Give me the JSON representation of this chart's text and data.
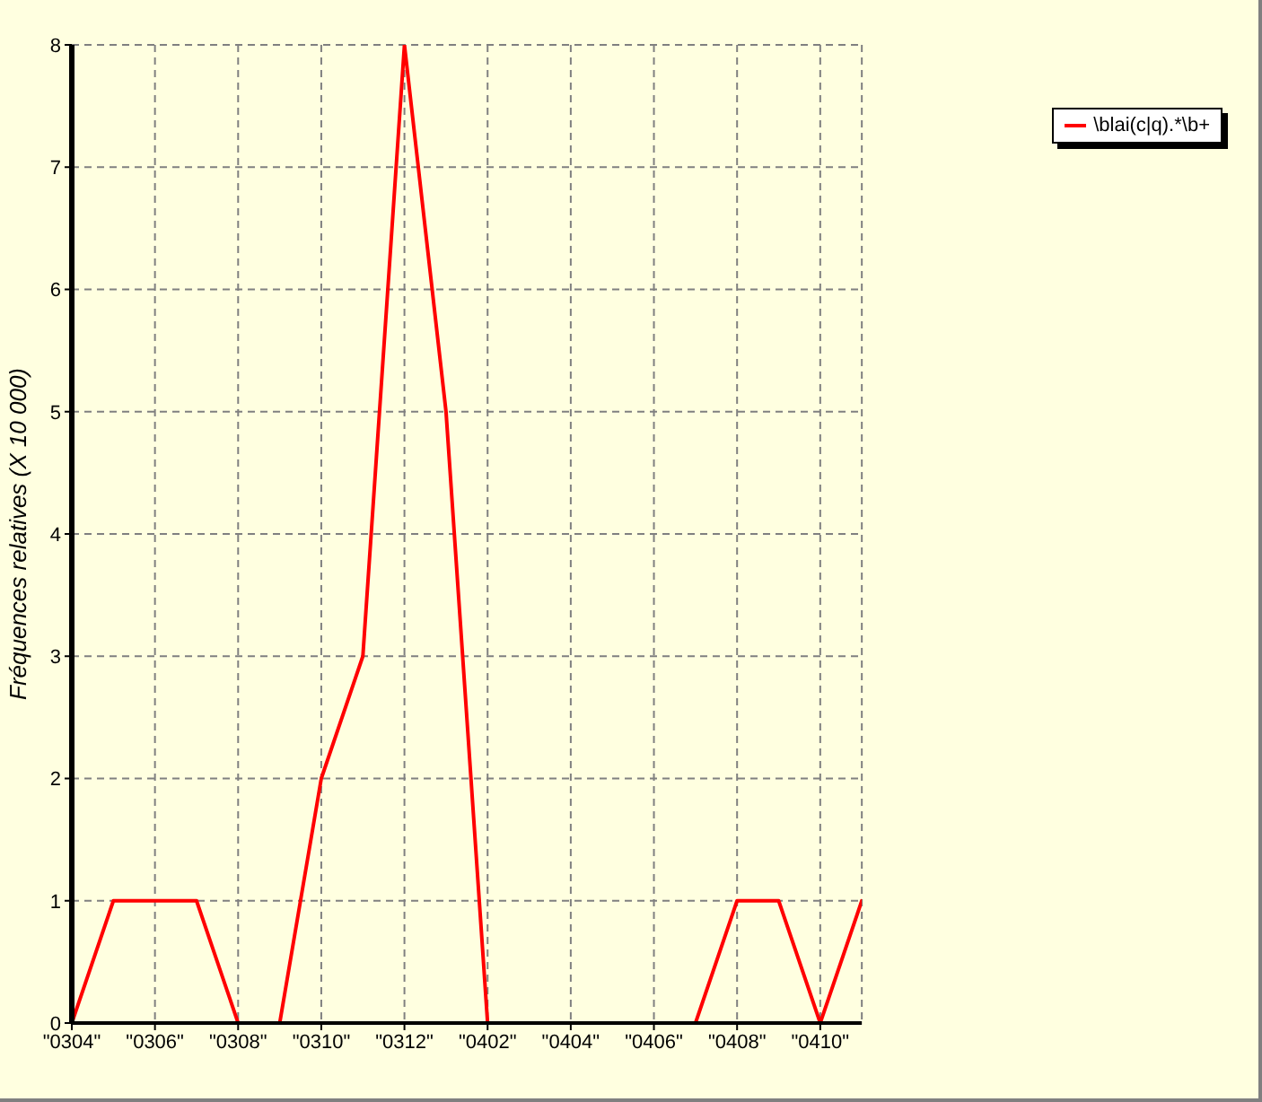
{
  "chart_data": {
    "type": "line",
    "ylabel": "Fréquences relatives (X 10 000)",
    "categories": [
      "\"0304\"",
      null,
      "\"0306\"",
      null,
      "\"0308\"",
      null,
      "\"0310\"",
      null,
      "\"0312\"",
      null,
      "\"0402\"",
      null,
      "\"0404\"",
      null,
      "\"0406\"",
      null,
      "\"0408\"",
      null,
      "\"0410\"",
      null
    ],
    "series": [
      {
        "name": "\\blai(c|q).*\\b+",
        "color": "#ff0000",
        "values": [
          0,
          1,
          1,
          1,
          0,
          0,
          2,
          3,
          8,
          5,
          0,
          0,
          0,
          0,
          0,
          0,
          1,
          1,
          0,
          1
        ]
      }
    ],
    "ylim": [
      0,
      8
    ],
    "yticks": [
      0,
      1,
      2,
      3,
      4,
      5,
      6,
      7,
      8
    ],
    "grid": true,
    "legend": "top right",
    "marker": "none",
    "line_style": "solid"
  }
}
